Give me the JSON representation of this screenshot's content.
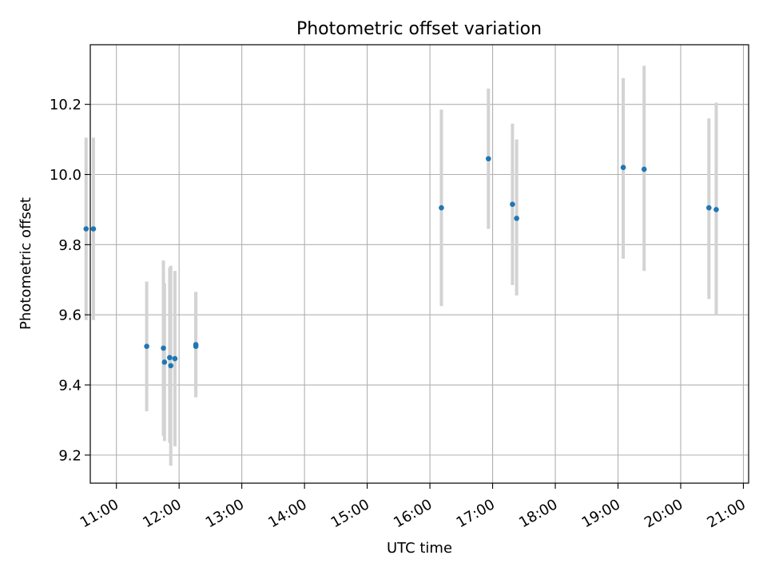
{
  "chart_data": {
    "type": "scatter",
    "title": "Photometric offset variation",
    "xlabel": "UTC time",
    "ylabel": "Photometric offset",
    "x_unit": "time of day (HH:MM)",
    "xlim": [
      "10:35",
      "21:05"
    ],
    "ylim": [
      9.12,
      10.37
    ],
    "x_ticks": [
      "11:00",
      "12:00",
      "13:00",
      "14:00",
      "15:00",
      "16:00",
      "17:00",
      "18:00",
      "19:00",
      "20:00",
      "21:00"
    ],
    "y_ticks": [
      "9.2",
      "9.4",
      "9.6",
      "9.8",
      "10.0",
      "10.2"
    ],
    "grid": true,
    "marker_color": "#1f77b4",
    "errorbar_color": "#d3d3d3",
    "series": [
      {
        "points": [
          {
            "x": "10:31",
            "y": 9.845,
            "ylo": 9.585,
            "yhi": 10.105
          },
          {
            "x": "10:38",
            "y": 9.845,
            "ylo": 9.585,
            "yhi": 10.105
          },
          {
            "x": "11:29",
            "y": 9.51,
            "ylo": 9.325,
            "yhi": 9.695
          },
          {
            "x": "11:45",
            "y": 9.505,
            "ylo": 9.255,
            "yhi": 9.755
          },
          {
            "x": "11:46",
            "y": 9.465,
            "ylo": 9.24,
            "yhi": 9.69
          },
          {
            "x": "11:51",
            "y": 9.478,
            "ylo": 9.235,
            "yhi": 9.735
          },
          {
            "x": "11:52",
            "y": 9.455,
            "ylo": 9.17,
            "yhi": 9.74
          },
          {
            "x": "11:56",
            "y": 9.475,
            "ylo": 9.225,
            "yhi": 9.725
          },
          {
            "x": "12:16",
            "y": 9.515,
            "ylo": 9.365,
            "yhi": 9.665
          },
          {
            "x": "12:16",
            "y": 9.51,
            "ylo": 9.365,
            "yhi": 9.665
          },
          {
            "x": "16:11",
            "y": 9.905,
            "ylo": 9.625,
            "yhi": 10.185
          },
          {
            "x": "16:56",
            "y": 10.045,
            "ylo": 9.845,
            "yhi": 10.245
          },
          {
            "x": "17:19",
            "y": 9.915,
            "ylo": 9.685,
            "yhi": 10.145
          },
          {
            "x": "17:23",
            "y": 9.875,
            "ylo": 9.655,
            "yhi": 10.1
          },
          {
            "x": "19:05",
            "y": 10.02,
            "ylo": 9.76,
            "yhi": 10.275
          },
          {
            "x": "19:25",
            "y": 10.015,
            "ylo": 9.725,
            "yhi": 10.31
          },
          {
            "x": "20:27",
            "y": 9.905,
            "ylo": 9.645,
            "yhi": 10.16
          },
          {
            "x": "20:34",
            "y": 9.9,
            "ylo": 9.6,
            "yhi": 10.205
          }
        ]
      }
    ]
  }
}
